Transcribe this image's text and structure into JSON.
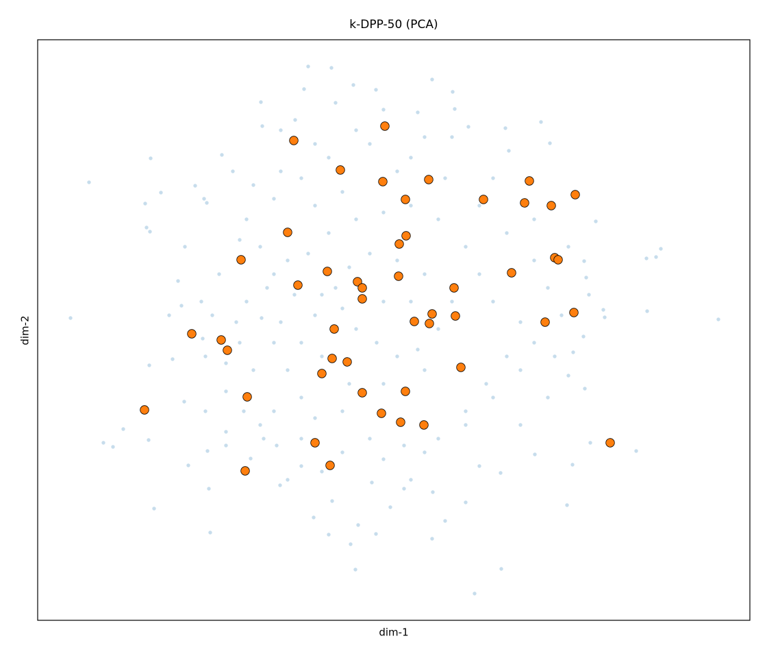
{
  "chart_data": {
    "type": "scatter",
    "title": "k-DPP-50 (PCA)",
    "x_label": "dim-1",
    "y_label": "dim-2",
    "xlim": [
      -5.2,
      5.2
    ],
    "ylim": [
      -4.35,
      4.12
    ],
    "grid": false,
    "series": [
      {
        "color": "#1f77b4",
        "x": [
          -1.25,
          -0.91,
          -4.45,
          -4.72,
          4.74,
          3.9,
          3.83,
          3.69,
          3.7,
          1.18,
          -0.56,
          1.57,
          -2.68,
          -3.5,
          -0.63,
          -0.26,
          0.56,
          -0.52,
          -1.17,
          2.53,
          -4.24,
          -4.1,
          -3.95,
          -3.58,
          -3.0,
          -2.72,
          -2.7,
          -1.66,
          -0.9,
          -3.06,
          -3.23,
          -3.57,
          -3.28,
          -3.1,
          -2.81,
          -3.56,
          -3.61,
          -3.63,
          -3.4,
          -2.77,
          -2.73,
          -2.9,
          -3.55,
          -2.51,
          -1.92,
          -1.94,
          -1.44,
          -1.31,
          -0.59,
          -0.26,
          0.56,
          0.86,
          0.35,
          0.89,
          1.09,
          1.63,
          1.68,
          2.15,
          2.28,
          2.95,
          2.78,
          2.81,
          3.06,
          3.08,
          2.77,
          2.62,
          2.55,
          2.79,
          2.87,
          3.54,
          2.61,
          2.06,
          1.56,
          1.05,
          0.57,
          0.15,
          -0.32,
          -1.05,
          -1.35,
          -2.09,
          -2.45,
          -1.71,
          -2.19,
          -1.95,
          -2.45,
          -2.75,
          -2.79,
          -2.3,
          -1.93,
          -1.75,
          -1.55,
          -1.35,
          -1.15,
          -0.75,
          -0.35,
          0.15,
          0.65,
          1.05,
          1.35,
          1.65,
          1.85,
          1.45,
          1.25,
          1.05,
          0.65,
          0.25,
          -0.15,
          -0.55,
          -0.95,
          -1.25,
          -1.45,
          -1.65,
          -1.35,
          -1.15,
          -0.75,
          -0.55,
          -0.25,
          0.05,
          0.35,
          0.65,
          0.85,
          0.45,
          0.05,
          -0.35,
          -0.65,
          -0.85,
          -1.05,
          -0.15,
          0.25,
          0.45,
          -0.15,
          -0.65,
          -1.05,
          -1.75,
          -1.95,
          -2.15,
          -1.75,
          -1.35,
          -0.95,
          -0.35,
          0.25,
          0.75,
          1.25,
          1.65,
          2.05,
          2.25,
          2.45,
          2.05,
          1.85,
          1.45,
          1.05,
          0.45,
          -0.15,
          -0.75,
          -1.35,
          -1.75,
          -2.05,
          -2.25,
          -2.15,
          -1.85,
          -1.55,
          -1.15,
          -0.75,
          0.05,
          0.45,
          -0.55,
          -1.15,
          -1.65,
          -2.05,
          -2.25,
          -2.55,
          -2.65,
          -2.45,
          -1.9,
          -1.55,
          0.25,
          1.25,
          1.85,
          2.25,
          2.35,
          2.85,
          2.55,
          2.05,
          1.45,
          0.85,
          -0.15,
          -0.85,
          -1.65,
          -2.35,
          -3.05,
          -3.15,
          -2.75,
          -2.45,
          0.75,
          -0.05,
          -0.95
        ],
        "y": [
          3.73,
          3.71,
          2.04,
          0.06,
          0.04,
          1.07,
          0.95,
          0.93,
          0.16,
          -3.96,
          -3.61,
          -3.6,
          -3.07,
          -2.72,
          -3.24,
          -3.09,
          -3.16,
          -2.96,
          -2.85,
          -2.67,
          -1.76,
          -1.82,
          -1.56,
          -1.72,
          -2.09,
          -1.88,
          -2.43,
          -2.38,
          -2.61,
          -1.16,
          -0.54,
          -0.63,
          0.1,
          0.24,
          0.3,
          1.32,
          1.38,
          1.73,
          1.89,
          1.8,
          1.74,
          1.99,
          2.39,
          2.44,
          2.86,
          3.21,
          2.95,
          3.4,
          3.46,
          3.39,
          3.54,
          3.36,
          3.06,
          3.11,
          2.85,
          2.83,
          2.5,
          2.92,
          2.61,
          1.47,
          0.89,
          0.65,
          0.18,
          0.07,
          -0.21,
          -0.44,
          -0.78,
          -0.97,
          -1.76,
          -1.88,
          -2.08,
          -1.93,
          -2.2,
          -2.63,
          -2.48,
          -2.43,
          -2.34,
          -2.18,
          -2.1,
          -1.99,
          -1.8,
          -1.8,
          -1.3,
          -1.5,
          -1.01,
          -0.5,
          -0.24,
          0.0,
          0.06,
          -0.3,
          -0.7,
          -1.1,
          -1.4,
          -1.3,
          -1.7,
          -1.8,
          -1.7,
          -1.3,
          -0.9,
          -0.5,
          0.0,
          0.3,
          0.7,
          1.1,
          1.5,
          1.7,
          1.6,
          1.5,
          1.3,
          1.0,
          0.4,
          0.0,
          -0.3,
          0.1,
          0.2,
          -0.1,
          -0.3,
          -0.5,
          -0.4,
          -0.1,
          0.3,
          0.7,
          0.9,
          1.0,
          0.8,
          0.5,
          0.4,
          0.3,
          0.3,
          -0.7,
          -0.9,
          -0.9,
          -0.5,
          0.7,
          1.1,
          1.5,
          1.8,
          2.1,
          2.4,
          2.6,
          2.4,
          2.1,
          1.7,
          1.3,
          0.9,
          0.5,
          0.1,
          -0.3,
          -0.7,
          -1.1,
          -1.5,
          -1.9,
          -2.0,
          -1.9,
          -1.7,
          -1.3,
          -0.7,
          -0.3,
          0.3,
          0.5,
          0.9,
          1.7,
          1.9,
          2.2,
          2.7,
          2.8,
          2.6,
          2.2,
          2.0,
          1.2,
          0.7,
          0.1,
          -0.6,
          -1.7,
          -2.3,
          -2.3,
          -2.1,
          -1.5,
          -1.1,
          -0.5,
          0.4,
          1.1,
          1.5,
          2.1,
          2.7,
          3.1,
          3.2,
          2.8,
          2.2,
          1.1,
          0.6,
          -1.3,
          -1.6,
          -2.9,
          -2.7,
          -3.1
        ]
      },
      {
        "color": "#ff7f0e",
        "x": [
          -0.13,
          -1.46,
          -0.78,
          -0.16,
          0.51,
          1.98,
          2.65,
          1.31,
          1.91,
          2.3,
          0.17,
          -1.55,
          0.18,
          0.08,
          -2.23,
          2.35,
          2.4,
          1.72,
          -0.97,
          0.07,
          -1.4,
          -0.53,
          -0.46,
          0.88,
          -0.46,
          0.56,
          0.9,
          2.63,
          0.3,
          0.52,
          2.21,
          -0.87,
          -2.95,
          -2.52,
          -2.43,
          -0.9,
          -0.68,
          0.98,
          -1.05,
          -0.46,
          0.17,
          -2.14,
          -3.64,
          -0.18,
          0.1,
          0.44,
          -1.15,
          3.16,
          -0.93,
          -2.17
        ],
        "y": [
          2.86,
          2.65,
          2.22,
          2.05,
          2.08,
          2.06,
          1.86,
          1.79,
          1.74,
          1.7,
          1.79,
          1.31,
          1.26,
          1.14,
          0.91,
          0.94,
          0.91,
          0.72,
          0.74,
          0.67,
          0.54,
          0.59,
          0.5,
          0.5,
          0.34,
          0.12,
          0.09,
          0.14,
          0.01,
          -0.02,
          0.0,
          -0.1,
          -0.17,
          -0.26,
          -0.41,
          -0.53,
          -0.58,
          -0.66,
          -0.75,
          -1.03,
          -1.01,
          -1.09,
          -1.28,
          -1.33,
          -1.46,
          -1.5,
          -1.76,
          -1.76,
          -2.09,
          -2.17
        ]
      }
    ]
  }
}
